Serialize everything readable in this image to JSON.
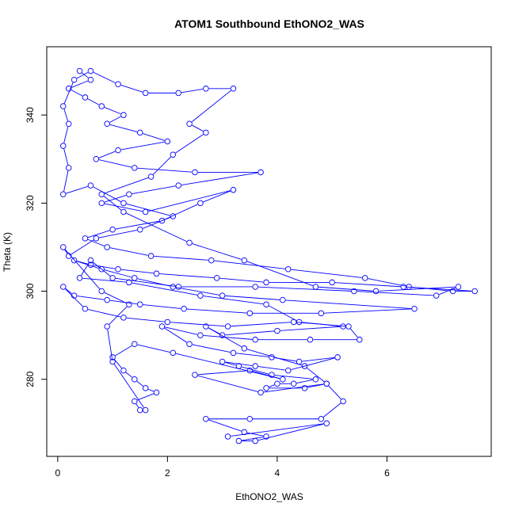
{
  "chart_data": {
    "type": "line",
    "title": "ATOM1 Southbound EthONO2_WAS",
    "xlabel": "EthONO2_WAS",
    "ylabel": "Theta (K)",
    "xlim": [
      -0.2,
      7.9
    ],
    "ylim": [
      262.5,
      355.5
    ],
    "xticks": [
      0,
      2,
      4,
      6
    ],
    "yticks": [
      280,
      300,
      320,
      340
    ],
    "grid": false,
    "legend": "none",
    "line_color": "#0000ff",
    "marker": "open-circle",
    "series": [
      {
        "name": "EthONO2_WAS",
        "points": [
          [
            0.4,
            350
          ],
          [
            0.6,
            348
          ],
          [
            0.2,
            346
          ],
          [
            0.5,
            344
          ],
          [
            0.8,
            342
          ],
          [
            1.2,
            340
          ],
          [
            0.9,
            338
          ],
          [
            1.5,
            336
          ],
          [
            2.0,
            334
          ],
          [
            1.1,
            332
          ],
          [
            0.7,
            330
          ],
          [
            1.4,
            328
          ],
          [
            2.5,
            327
          ],
          [
            3.7,
            327
          ],
          [
            2.2,
            324
          ],
          [
            1.3,
            322
          ],
          [
            0.8,
            320
          ],
          [
            1.6,
            318
          ],
          [
            3.2,
            323
          ],
          [
            2.6,
            320
          ],
          [
            1.9,
            316
          ],
          [
            1.0,
            314
          ],
          [
            0.5,
            312
          ],
          [
            0.9,
            310
          ],
          [
            1.7,
            308
          ],
          [
            2.8,
            307
          ],
          [
            4.2,
            305
          ],
          [
            5.6,
            303
          ],
          [
            6.4,
            301
          ],
          [
            7.2,
            300
          ],
          [
            7.6,
            300
          ],
          [
            6.3,
            301
          ],
          [
            5.0,
            302
          ],
          [
            3.8,
            302
          ],
          [
            2.9,
            303
          ],
          [
            1.8,
            304
          ],
          [
            1.1,
            305
          ],
          [
            0.6,
            306
          ],
          [
            0.3,
            307
          ],
          [
            0.8,
            305
          ],
          [
            1.4,
            303
          ],
          [
            2.1,
            301
          ],
          [
            3.0,
            299
          ],
          [
            4.1,
            298
          ],
          [
            6.5,
            296
          ],
          [
            4.8,
            295
          ],
          [
            3.5,
            295
          ],
          [
            2.3,
            296
          ],
          [
            1.5,
            297
          ],
          [
            0.9,
            298
          ],
          [
            0.3,
            299
          ],
          [
            0.1,
            301
          ],
          [
            0.5,
            296
          ],
          [
            1.2,
            294
          ],
          [
            2.0,
            293
          ],
          [
            3.1,
            292
          ],
          [
            4.3,
            293
          ],
          [
            5.3,
            292
          ],
          [
            5.5,
            289
          ],
          [
            4.6,
            289
          ],
          [
            3.6,
            289
          ],
          [
            2.6,
            290
          ],
          [
            1.9,
            292
          ],
          [
            2.4,
            288
          ],
          [
            3.2,
            286
          ],
          [
            3.9,
            285
          ],
          [
            4.4,
            284
          ],
          [
            5.1,
            285
          ],
          [
            4.2,
            282
          ],
          [
            3.6,
            283
          ],
          [
            3.0,
            284
          ],
          [
            3.3,
            283
          ],
          [
            3.9,
            281
          ],
          [
            4.7,
            280
          ],
          [
            4.3,
            279
          ],
          [
            4.0,
            279
          ],
          [
            3.8,
            278
          ],
          [
            4.5,
            278
          ],
          [
            4.9,
            279
          ],
          [
            3.7,
            277
          ],
          [
            2.5,
            281
          ],
          [
            3.5,
            282
          ],
          [
            4.1,
            280
          ],
          [
            2.1,
            286
          ],
          [
            1.4,
            288
          ],
          [
            1.0,
            285
          ],
          [
            1.2,
            282
          ],
          [
            1.4,
            280
          ],
          [
            1.6,
            278
          ],
          [
            1.8,
            277
          ],
          [
            1.4,
            275
          ],
          [
            1.5,
            273
          ],
          [
            1.6,
            273
          ],
          [
            1.0,
            284
          ],
          [
            0.9,
            292
          ],
          [
            1.3,
            297
          ],
          [
            0.8,
            300
          ],
          [
            0.1,
            310
          ],
          [
            0.2,
            308
          ],
          [
            0.7,
            312
          ],
          [
            1.5,
            314
          ],
          [
            2.1,
            317
          ],
          [
            1.2,
            320
          ],
          [
            0.6,
            324
          ],
          [
            0.1,
            322
          ],
          [
            0.2,
            328
          ],
          [
            0.1,
            333
          ],
          [
            0.2,
            338
          ],
          [
            0.1,
            342
          ],
          [
            0.3,
            348
          ],
          [
            0.6,
            350
          ],
          [
            1.1,
            347
          ],
          [
            1.6,
            345
          ],
          [
            2.2,
            345
          ],
          [
            2.7,
            346
          ],
          [
            3.2,
            346
          ],
          [
            2.4,
            338
          ],
          [
            2.7,
            336
          ],
          [
            2.1,
            331
          ],
          [
            1.7,
            326
          ],
          [
            0.8,
            322
          ],
          [
            1.2,
            318
          ],
          [
            2.4,
            311
          ],
          [
            3.4,
            307
          ],
          [
            4.7,
            301
          ],
          [
            5.8,
            300
          ],
          [
            7.3,
            301
          ],
          [
            6.9,
            299
          ],
          [
            5.4,
            300
          ],
          [
            3.6,
            301
          ],
          [
            2.2,
            301
          ],
          [
            1.0,
            303
          ],
          [
            0.6,
            307
          ],
          [
            0.4,
            303
          ],
          [
            1.3,
            302
          ],
          [
            2.6,
            299
          ],
          [
            3.8,
            297
          ],
          [
            4.4,
            293
          ],
          [
            5.2,
            292
          ],
          [
            4.0,
            291
          ],
          [
            3.0,
            290
          ],
          [
            2.7,
            292
          ],
          [
            3.4,
            287
          ],
          [
            4.5,
            283
          ],
          [
            4.9,
            279
          ],
          [
            5.2,
            275
          ],
          [
            4.8,
            271
          ],
          [
            3.5,
            271
          ],
          [
            2.7,
            271
          ],
          [
            3.4,
            268
          ],
          [
            3.8,
            267
          ],
          [
            3.3,
            266
          ],
          [
            3.6,
            266
          ],
          [
            4.9,
            270
          ],
          [
            3.1,
            267
          ]
        ]
      }
    ]
  }
}
